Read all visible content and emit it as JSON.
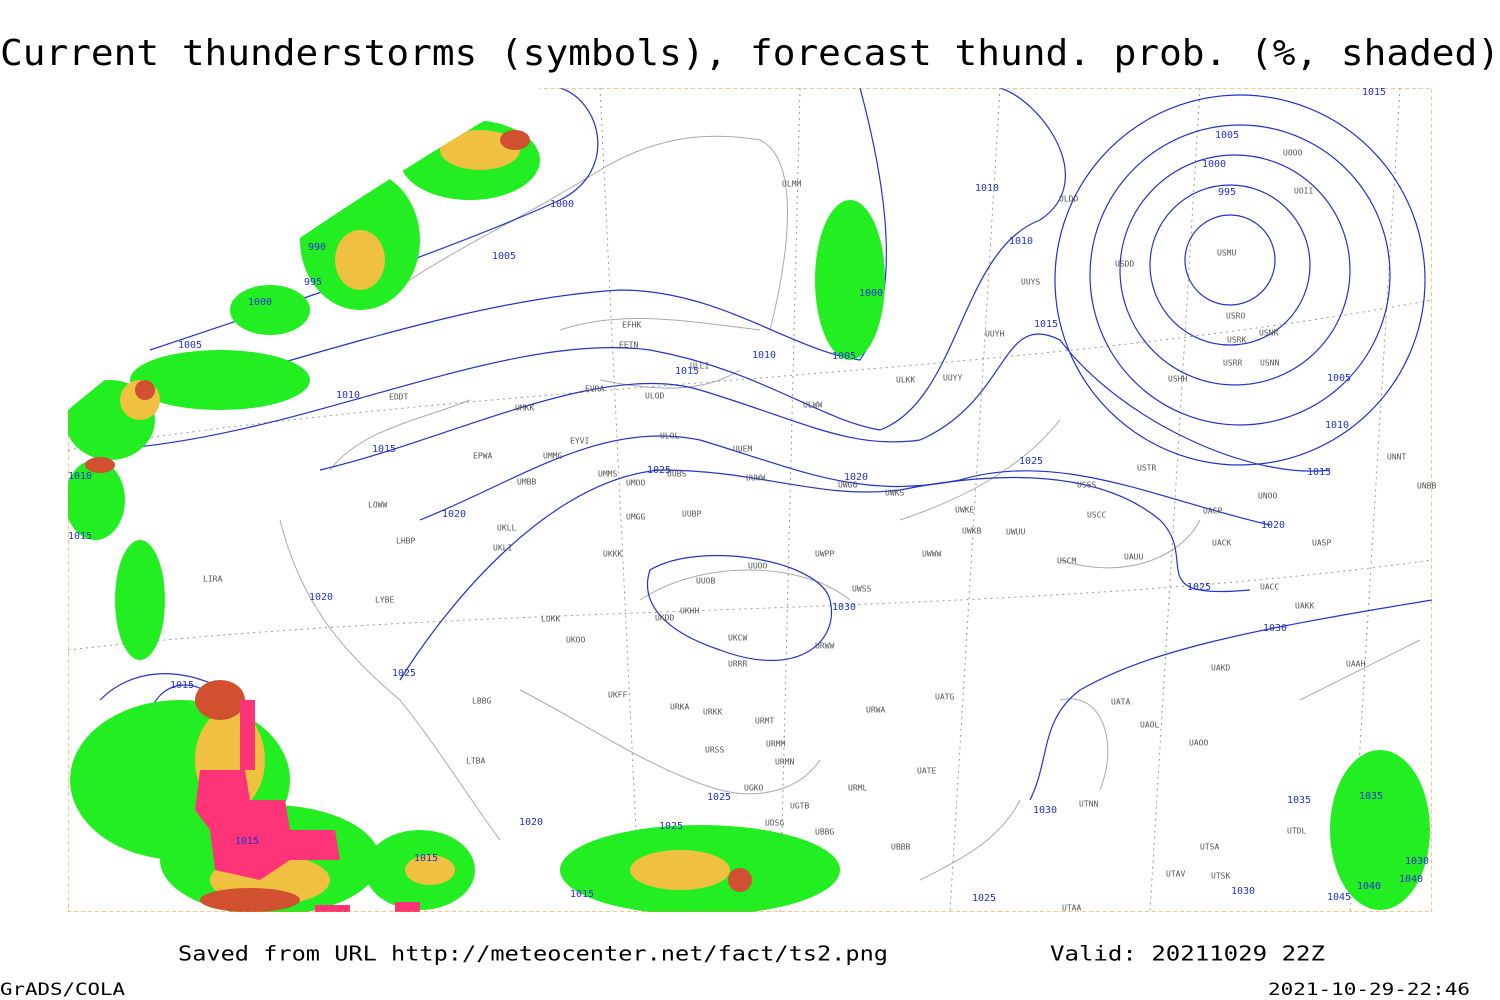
{
  "title": "Current thunderstorms (symbols), forecast thund. prob. (%, shaded)",
  "footer": {
    "saved": "Saved from URL http://meteocenter.net/fact/ts2.png",
    "valid": "Valid: 20211029 22Z",
    "software": "GrADS/COLA",
    "timestamp": "2021-10-29-22:46"
  },
  "isobar_labels": [
    "990",
    "995",
    "1000",
    "1005",
    "1010",
    "1015",
    "1010",
    "1015",
    "1000",
    "1005",
    "1010",
    "1015",
    "1005",
    "1000",
    "1010",
    "1010",
    "1015",
    "1005",
    "1000",
    "995",
    "1005",
    "1010",
    "1015",
    "1020",
    "1025",
    "1025",
    "1020",
    "1020",
    "1025",
    "1030",
    "1030",
    "1020",
    "1025",
    "1015",
    "1015",
    "1015",
    "1020",
    "1025",
    "1025",
    "1015",
    "1030",
    "1035",
    "1035",
    "1030",
    "1030",
    "1040",
    "1040",
    "1045",
    "1025",
    "1015"
  ],
  "stations": [
    "EFHK",
    "EETN",
    "EVRA",
    "ULOD",
    "UMKK",
    "EYVI",
    "ULOL",
    "UUEM",
    "EPWA",
    "UMMG",
    "UMMS",
    "UMOO",
    "UUBS",
    "UUWW",
    "UMBB",
    "UWGG",
    "UWKS",
    "UKLL",
    "UKLI",
    "UMGG",
    "UUBP",
    "UKKK",
    "UUOO",
    "UWPP",
    "UWWW",
    "UUOB",
    "UKHH",
    "UKDD",
    "UKCW",
    "UWSS",
    "UKFF",
    "URWW",
    "URRR",
    "UKOO",
    "LUKK",
    "LIRA",
    "LYBE",
    "LBBG",
    "LTBA",
    "URKA",
    "URKK",
    "URMT",
    "URMM",
    "URMN",
    "URSS",
    "UGKO",
    "UGTB",
    "UDSG",
    "UBBG",
    "UBBB",
    "URML",
    "UATE",
    "UATG",
    "URWA",
    "UWKE",
    "UWKB",
    "UWUU",
    "USCM",
    "UAUU",
    "USCC",
    "USSS",
    "USTR",
    "UACP",
    "UACK",
    "UASP",
    "UACC",
    "UAKK",
    "UAKD",
    "UATA",
    "UAOL",
    "UAOO",
    "UTSA",
    "UTSK",
    "UTAV",
    "UTAA",
    "ULLI",
    "ULMM",
    "ULDD",
    "UUYS",
    "UUYH",
    "UUYY",
    "ULKK",
    "ULWW",
    "USMU",
    "USRO",
    "USRK",
    "USNR",
    "USRR",
    "USNN",
    "USHH",
    "USDD",
    "UOOO",
    "UOII",
    "UNOO",
    "UNNT",
    "UNBB",
    "UAAH",
    "UTDL",
    "UTNN",
    "EDDT",
    "LOWW",
    "LHBP"
  ]
}
